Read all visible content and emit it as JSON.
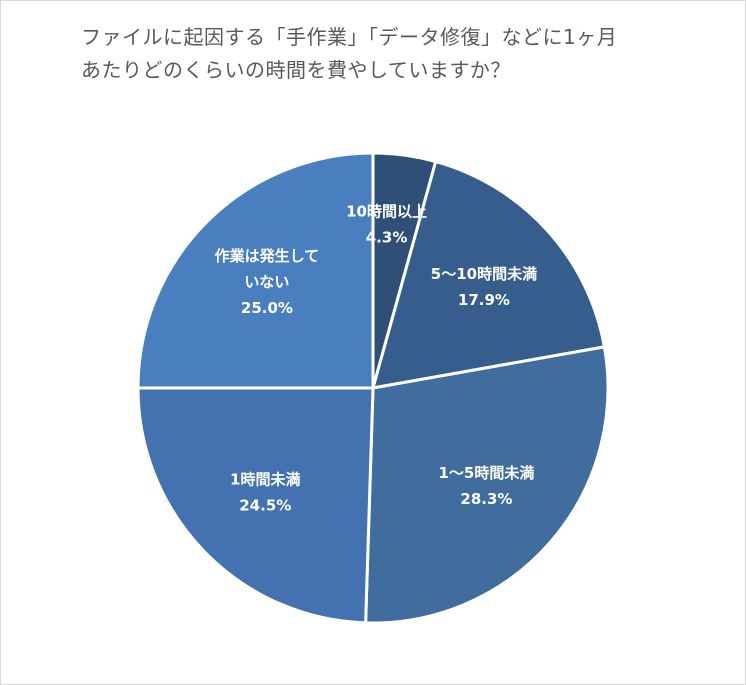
{
  "chart_data": {
    "type": "pie",
    "title_lines": [
      "ファイルに起因する「手作業」「データ修復」などに1ヶ月",
      "あたりどのくらいの時間を費やしていますか？"
    ],
    "slices": [
      {
        "label_lines": [
          "10時間以上"
        ],
        "value": 4.3,
        "value_label": "4.3%",
        "color": "#2f4f77"
      },
      {
        "label_lines": [
          "5〜10時間未満"
        ],
        "value": 17.9,
        "value_label": "17.9%",
        "color": "#375d8c"
      },
      {
        "label_lines": [
          "1〜5時間未満"
        ],
        "value": 28.3,
        "value_label": "28.3%",
        "color": "#416c9e"
      },
      {
        "label_lines": [
          "1時間未満"
        ],
        "value": 24.5,
        "value_label": "24.5%",
        "color": "#4472b1"
      },
      {
        "label_lines": [
          "作業は発生して",
          "いない"
        ],
        "value": 25.0,
        "value_label": "25.0%",
        "color": "#4a7fbf"
      }
    ],
    "start": "12 o'clock",
    "direction": "clockwise"
  }
}
